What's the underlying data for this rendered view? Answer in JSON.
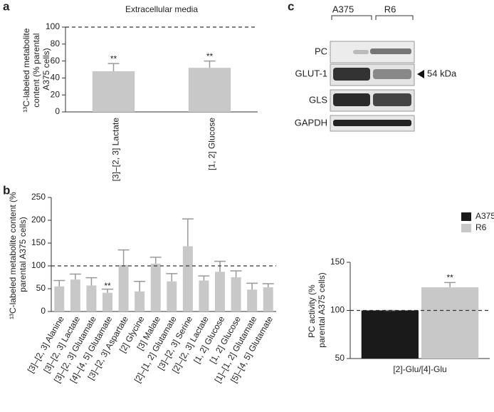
{
  "chart_data": [
    {
      "type": "bar",
      "panel": "a",
      "title": "Extracellular media",
      "y_label": "¹³C-labeled metabolite content (% parental A375 cells)",
      "categories": [
        "[3]–[2, 3] Lactate",
        "[1, 2] Glucose"
      ],
      "values": [
        48,
        52
      ],
      "errors": [
        9,
        8
      ],
      "significance": [
        "**",
        "**"
      ],
      "color": "#c8c8c8",
      "ylim": [
        0,
        100
      ],
      "yticks": [
        0,
        20,
        40,
        60,
        80,
        100
      ],
      "refline": 100,
      "grid": false
    },
    {
      "type": "bar",
      "panel": "b",
      "y_label": "¹³C-labeled metabolite content (% parental A375 cells)",
      "categories": [
        "[3]–[2, 3] Alanine",
        "[3]–[2, 3] Lactate",
        "[3]–[2, 3] Glutamate",
        "[4]–[4, 5] Glutamate",
        "[3]–[2, 3] Aspartate",
        "[2] Glycine",
        "[3] Malate",
        "[2]–[1, 2] Glutamate",
        "[3]–[2, 3] Serine",
        "[2]–[2, 3] Lactate",
        "[1, 2] Glucose",
        "[1, 2] Glucose",
        "[1]–[1, 2] Glutamate",
        "[5]–[4, 5] Glutamate"
      ],
      "values": [
        55,
        70,
        57,
        41,
        102,
        44,
        105,
        66,
        143,
        68,
        87,
        75,
        48,
        53
      ],
      "errors": [
        13,
        12,
        17,
        8,
        33,
        22,
        14,
        17,
        60,
        10,
        23,
        14,
        14,
        8
      ],
      "significance": [
        null,
        null,
        null,
        "**",
        null,
        null,
        null,
        null,
        null,
        null,
        null,
        null,
        null,
        null
      ],
      "color": "#c8c8c8",
      "ylim": [
        0,
        250
      ],
      "yticks": [
        0,
        50,
        100,
        150,
        200,
        250
      ],
      "refline": 100,
      "grid": false
    },
    {
      "type": "bar",
      "y_label": "PC activity (% parental A375 cells)",
      "categories": [
        "[2]-Glu/[4]-Glu"
      ],
      "series": [
        {
          "name": "A375",
          "color": "#1a1a1a",
          "values": [
            100
          ],
          "errors": [
            0
          ],
          "significance": [
            null
          ]
        },
        {
          "name": "R6",
          "color": "#c8c8c8",
          "values": [
            124
          ],
          "errors": [
            5
          ],
          "significance": [
            "**"
          ]
        }
      ],
      "ylim": [
        50,
        150
      ],
      "yticks": [
        50,
        100,
        150
      ],
      "refline": 100,
      "grid": false,
      "legend": "top-right"
    }
  ],
  "blot": {
    "panel": "c",
    "groups": [
      "A375",
      "R6"
    ],
    "rows": [
      "PC",
      "GLUT-1",
      "GLS",
      "GAPDH"
    ],
    "annotation": "54 kDa"
  }
}
